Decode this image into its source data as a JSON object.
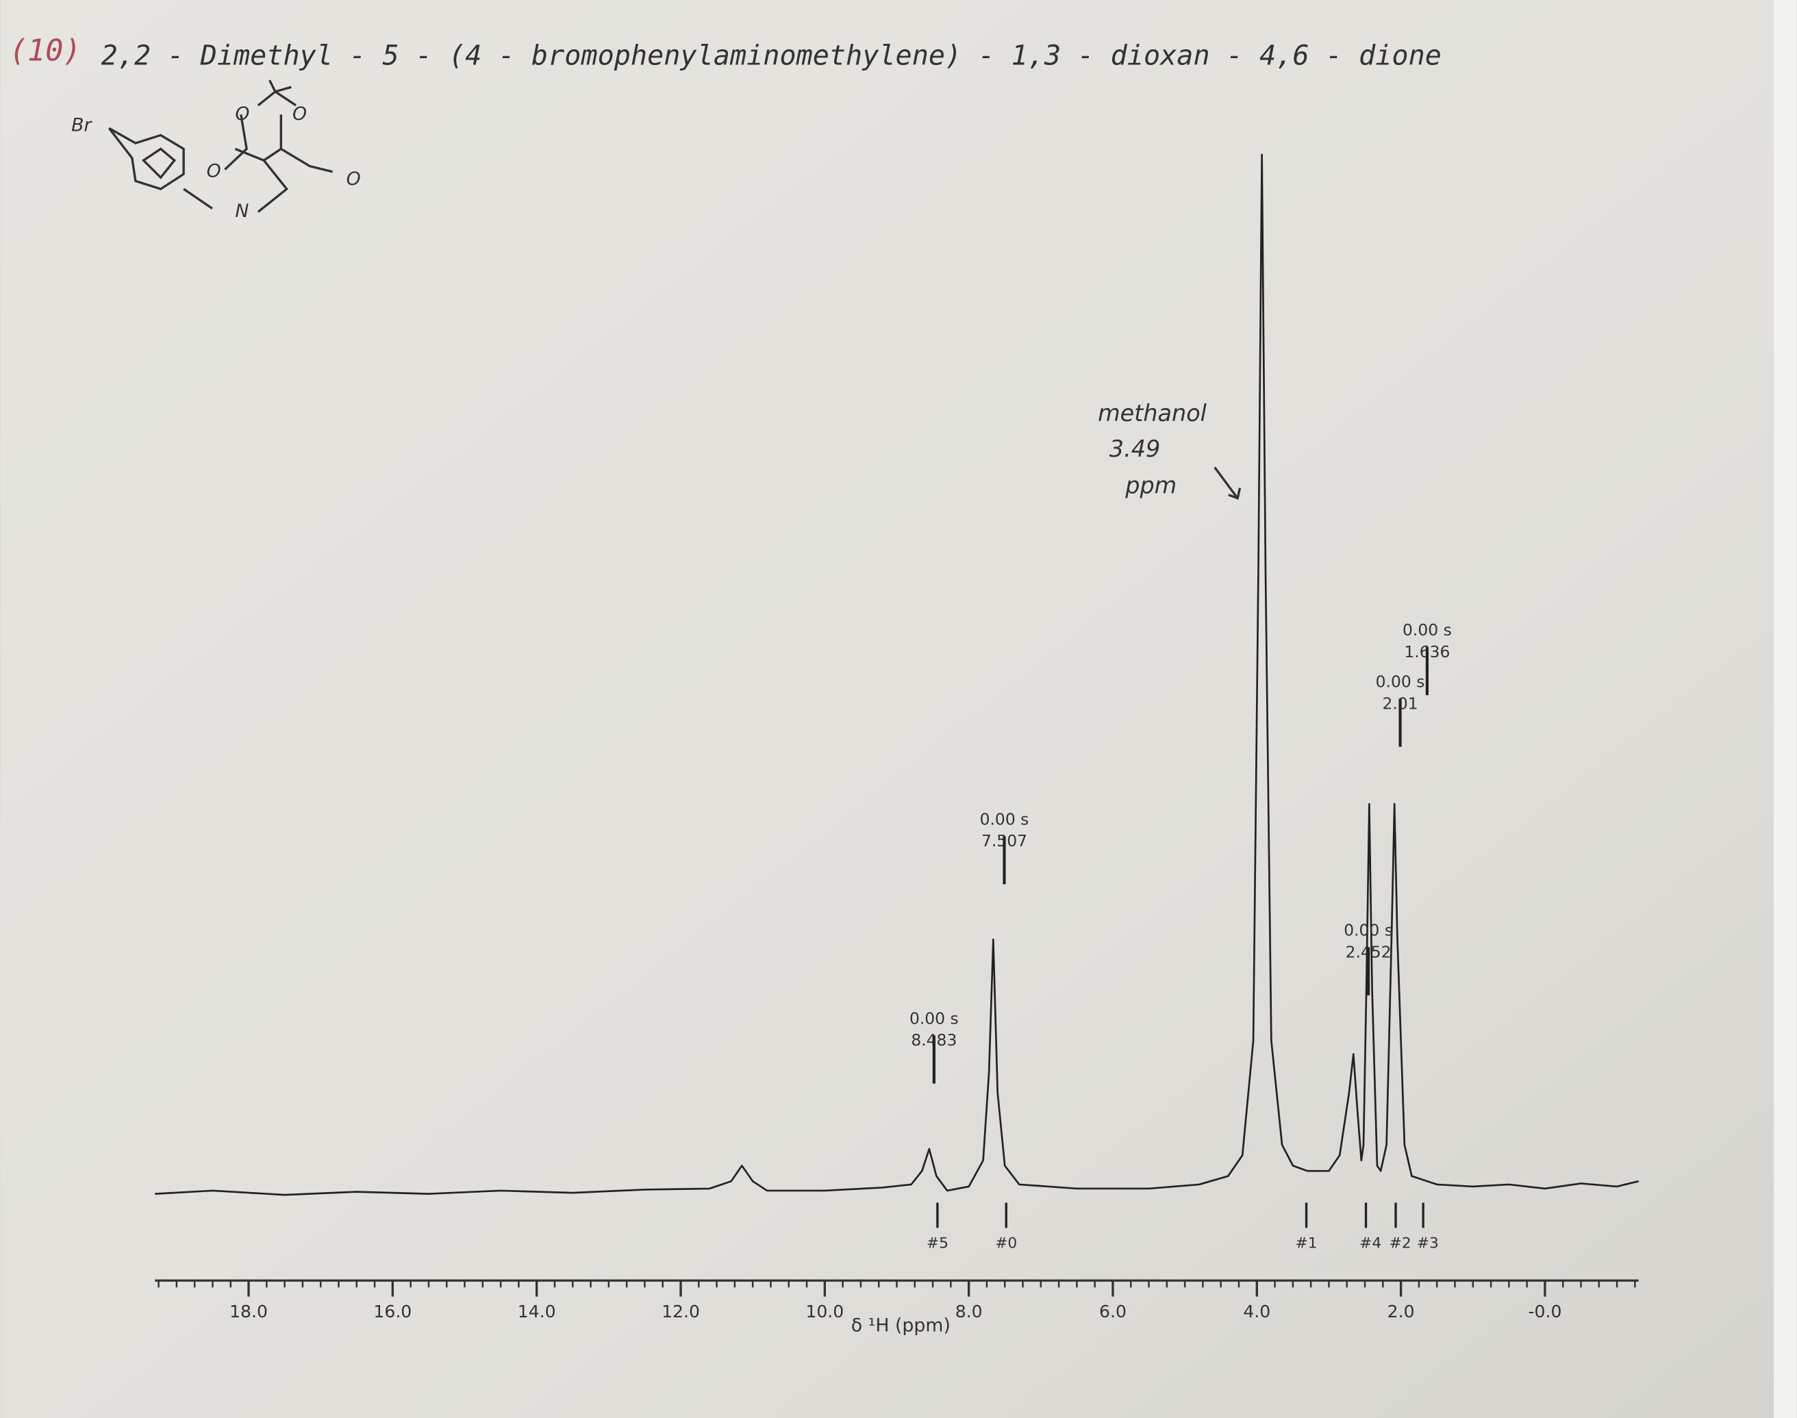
{
  "chart_data": {
    "type": "line",
    "title_number": "(10)",
    "title": "2,2 - Dimethyl - 5 - (4 - bromophenylaminomethylene) - 1,3 - dioxan - 4,6 - dione",
    "structure_labels": [
      "Br",
      "O",
      "O",
      "O",
      "O",
      "N"
    ],
    "annotation": [
      "methanol",
      "3.49",
      "ppm"
    ],
    "x_label": "δ ¹H (ppm)",
    "xlim": [
      19.3,
      -1.3
    ],
    "xticks": [
      {
        "value": 18,
        "label": "18.0"
      },
      {
        "value": 16,
        "label": "16.0"
      },
      {
        "value": 14,
        "label": "14.0"
      },
      {
        "value": 12,
        "label": "12.0"
      },
      {
        "value": 10,
        "label": "10.0"
      },
      {
        "value": 8,
        "label": "8.0"
      },
      {
        "value": 6,
        "label": "6.0"
      },
      {
        "value": 4,
        "label": "4.0"
      },
      {
        "value": 2,
        "label": "2.0"
      },
      {
        "value": 0,
        "label": "-0.0"
      }
    ],
    "color": "#222222",
    "x": [
      19.3,
      18.5,
      17.5,
      16.5,
      15.5,
      14.5,
      13.5,
      12.5,
      11.6,
      11.3,
      11.15,
      11.0,
      10.8,
      10.0,
      9.2,
      8.8,
      8.65,
      8.55,
      8.45,
      8.3,
      8.0,
      7.8,
      7.72,
      7.66,
      7.6,
      7.5,
      7.3,
      6.5,
      5.5,
      4.8,
      4.4,
      4.2,
      4.05,
      3.98,
      3.93,
      3.88,
      3.8,
      3.65,
      3.5,
      3.3,
      3.0,
      2.85,
      2.72,
      2.66,
      2.6,
      2.55,
      2.52,
      2.48,
      2.44,
      2.4,
      2.33,
      2.28,
      2.2,
      2.13,
      2.09,
      2.05,
      1.95,
      1.85,
      1.5,
      1.0,
      0.5,
      0,
      -0.5,
      -1.0,
      -1.3
    ],
    "values": [
      0.3,
      0.6,
      0.2,
      0.5,
      0.3,
      0.6,
      0.4,
      0.7,
      0.8,
      1.5,
      3.0,
      1.5,
      0.6,
      0.6,
      0.9,
      1.2,
      2.5,
      4.6,
      2.0,
      0.6,
      1.0,
      3.5,
      12,
      24.7,
      10,
      3,
      1.2,
      0.8,
      0.8,
      1.2,
      2.0,
      4,
      15,
      60,
      100,
      60,
      15,
      5,
      3,
      2.5,
      2.5,
      4,
      10,
      13.7,
      8,
      3.5,
      5,
      20,
      37.7,
      20,
      3.0,
      2.5,
      5,
      25,
      37.7,
      25,
      5,
      2,
      1.2,
      1.0,
      1.2,
      0.8,
      1.3,
      1.0,
      1.5
    ],
    "peak_labels": [
      {
        "integral": "0.00 s",
        "shift": 8.483
      },
      {
        "integral": "0.00 s",
        "shift": 7.507
      },
      {
        "integral": "0.00 s",
        "shift": 2.452
      },
      {
        "integral": "0.00 s",
        "shift": 2.01
      },
      {
        "integral": "0.00 s",
        "shift": 1.636
      }
    ],
    "peak_markers": [
      "#5",
      "#0",
      "#1",
      "#4",
      "#2",
      "#3"
    ]
  }
}
